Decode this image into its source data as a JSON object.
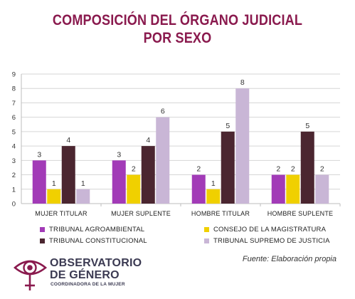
{
  "title_line1": "COMPOSICIÓN DEL ÓRGANO JUDICIAL",
  "title_line2": "POR SEXO",
  "source": "Fuente: Elaboración propia",
  "logo": {
    "line1": "OBSERVATORIO",
    "line2": "DE GÉNERO",
    "line3": "COORDINADORA DE LA MUJER"
  },
  "colors": {
    "title": "#8a1a4e",
    "agroambiental": "#a23bb7",
    "magistratura": "#f0d000",
    "constitucional": "#4b2630",
    "supremo": "#c9b6d6"
  },
  "chart_data": {
    "type": "bar",
    "categories": [
      "MUJER TITULAR",
      "MUJER SUPLENTE",
      "HOMBRE TITULAR",
      "HOMBRE SUPLENTE"
    ],
    "series": [
      {
        "name": "TRIBUNAL AGROAMBIENTAL",
        "color": "#a23bb7",
        "values": [
          3,
          3,
          2,
          2
        ]
      },
      {
        "name": "CONSEJO DE LA MAGISTRATURA",
        "color": "#f0d000",
        "values": [
          1,
          2,
          1,
          2
        ]
      },
      {
        "name": "TRIBUNAL CONSTITUCIONAL",
        "color": "#4b2630",
        "values": [
          4,
          4,
          5,
          5
        ]
      },
      {
        "name": "TRIBUNAL SUPREMO DE JUSTICIA",
        "color": "#c9b6d6",
        "values": [
          1,
          6,
          8,
          2
        ]
      }
    ],
    "yticks": [
      0,
      1,
      2,
      3,
      4,
      5,
      6,
      7,
      8,
      9
    ],
    "ylim": [
      0,
      9
    ],
    "grid": true,
    "legend_position": "bottom"
  }
}
